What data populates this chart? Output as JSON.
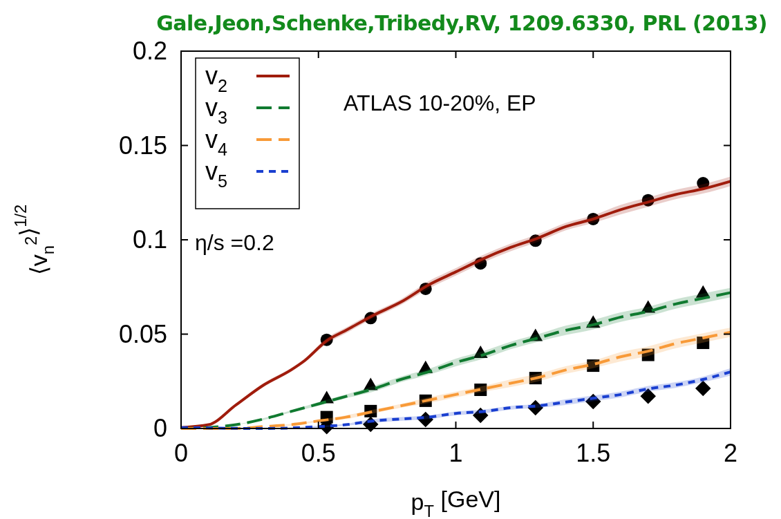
{
  "chart_data": {
    "type": "line",
    "title": "Gale,Jeon,Schenke,Tribedy,RV, 1209.6330, PRL (2013)",
    "xlabel": "p$_{T}$ [GeV]",
    "ylabel": "⟨v$_{n}$$^{2}$⟩$^{1/2}$",
    "annotations": [
      "ATLAS 10-20%, EP",
      "η/s =0.2"
    ],
    "xlim": [
      0,
      2
    ],
    "ylim": [
      0,
      0.2
    ],
    "xticks": [
      0,
      0.5,
      1,
      1.5,
      2
    ],
    "yticks": [
      0,
      0.05,
      0.1,
      0.15,
      0.2
    ],
    "grid": false,
    "legend": "top left",
    "series": [
      {
        "name": "v$_{2}$",
        "type": "line",
        "color": "#a01c0c",
        "line_style": "solid",
        "x": [
          0,
          0.1,
          0.2,
          0.3,
          0.4,
          0.45,
          0.53,
          0.6,
          0.7,
          0.8,
          0.9,
          1.0,
          1.1,
          1.2,
          1.3,
          1.4,
          1.5,
          1.6,
          1.7,
          1.8,
          1.9,
          2.0
        ],
        "values": [
          0.0005,
          0.002,
          0.0125,
          0.023,
          0.031,
          0.036,
          0.0465,
          0.052,
          0.06,
          0.067,
          0.076,
          0.083,
          0.09,
          0.096,
          0.101,
          0.107,
          0.111,
          0.116,
          0.12,
          0.124,
          0.127,
          0.131
        ],
        "lower": [
          0.0005,
          0.002,
          0.012,
          0.022,
          0.03,
          0.035,
          0.045,
          0.0505,
          0.0585,
          0.0655,
          0.074,
          0.081,
          0.088,
          0.094,
          0.099,
          0.105,
          0.109,
          0.1135,
          0.1175,
          0.1215,
          0.1245,
          0.1285
        ],
        "upper": [
          0.0005,
          0.002,
          0.013,
          0.024,
          0.032,
          0.037,
          0.048,
          0.0535,
          0.0615,
          0.0685,
          0.078,
          0.085,
          0.092,
          0.098,
          0.103,
          0.109,
          0.113,
          0.1185,
          0.1225,
          0.1265,
          0.1295,
          0.1335
        ]
      },
      {
        "name": "v$_{3}$",
        "type": "line",
        "color": "#107a30",
        "line_style": "dashed",
        "x": [
          0,
          0.1,
          0.2,
          0.3,
          0.4,
          0.5,
          0.6,
          0.7,
          0.8,
          0.9,
          1.0,
          1.1,
          1.2,
          1.3,
          1.4,
          1.5,
          1.6,
          1.7,
          1.8,
          1.9,
          2.0
        ],
        "values": [
          0,
          0.0005,
          0.002,
          0.005,
          0.009,
          0.013,
          0.017,
          0.021,
          0.026,
          0.03,
          0.035,
          0.039,
          0.044,
          0.048,
          0.052,
          0.055,
          0.059,
          0.062,
          0.066,
          0.069,
          0.072
        ],
        "lower": [
          0,
          0.0005,
          0.002,
          0.0045,
          0.0085,
          0.012,
          0.016,
          0.0195,
          0.0245,
          0.0285,
          0.033,
          0.037,
          0.042,
          0.046,
          0.0495,
          0.0525,
          0.0565,
          0.0595,
          0.0635,
          0.0665,
          0.0695
        ],
        "upper": [
          0,
          0.0005,
          0.002,
          0.0055,
          0.0095,
          0.014,
          0.018,
          0.0225,
          0.0275,
          0.0315,
          0.037,
          0.041,
          0.046,
          0.05,
          0.0545,
          0.0575,
          0.0615,
          0.0645,
          0.0685,
          0.0715,
          0.0745
        ]
      },
      {
        "name": "v$_{4}$",
        "type": "line",
        "color": "#f89a38",
        "line_style": "dashed",
        "x": [
          0,
          0.2,
          0.3,
          0.4,
          0.5,
          0.6,
          0.7,
          0.8,
          0.9,
          1.0,
          1.1,
          1.2,
          1.3,
          1.4,
          1.5,
          1.6,
          1.7,
          1.8,
          1.9,
          2.0
        ],
        "values": [
          0,
          0,
          0.001,
          0.002,
          0.004,
          0.006,
          0.009,
          0.012,
          0.015,
          0.018,
          0.021,
          0.024,
          0.027,
          0.031,
          0.034,
          0.038,
          0.041,
          0.045,
          0.048,
          0.051
        ],
        "lower": [
          0,
          0,
          0.001,
          0.0015,
          0.0035,
          0.005,
          0.008,
          0.011,
          0.0135,
          0.0165,
          0.0195,
          0.022,
          0.025,
          0.029,
          0.032,
          0.0355,
          0.0385,
          0.0425,
          0.0455,
          0.0485
        ],
        "upper": [
          0,
          0,
          0.001,
          0.0025,
          0.0045,
          0.007,
          0.01,
          0.013,
          0.0165,
          0.0195,
          0.0225,
          0.026,
          0.029,
          0.033,
          0.036,
          0.0405,
          0.0435,
          0.0475,
          0.0505,
          0.0535
        ]
      },
      {
        "name": "v$_{5}$",
        "type": "line",
        "color": "#1a3fd0",
        "line_style": "dotted",
        "x": [
          0,
          0.3,
          0.5,
          0.6,
          0.7,
          0.8,
          0.9,
          1.0,
          1.1,
          1.2,
          1.3,
          1.4,
          1.5,
          1.6,
          1.7,
          1.8,
          1.9,
          2.0
        ],
        "values": [
          0.0005,
          0,
          0.001,
          0.002,
          0.004,
          0.005,
          0.006,
          0.008,
          0.009,
          0.011,
          0.012,
          0.014,
          0.016,
          0.018,
          0.021,
          0.023,
          0.026,
          0.03
        ],
        "lower": [
          0.0005,
          0,
          0.0005,
          0.0015,
          0.003,
          0.004,
          0.005,
          0.007,
          0.008,
          0.01,
          0.011,
          0.0125,
          0.0145,
          0.0165,
          0.0195,
          0.0215,
          0.0245,
          0.028
        ],
        "upper": [
          0.0005,
          0,
          0.0015,
          0.0025,
          0.005,
          0.006,
          0.007,
          0.009,
          0.01,
          0.012,
          0.013,
          0.0155,
          0.0175,
          0.0195,
          0.0225,
          0.0245,
          0.0275,
          0.032
        ]
      },
      {
        "type": "scatter",
        "color": "#000000",
        "marker": "circle",
        "x": [
          0.53,
          0.69,
          0.89,
          1.09,
          1.29,
          1.5,
          1.7,
          1.9
        ],
        "values": [
          0.047,
          0.0585,
          0.074,
          0.0875,
          0.0995,
          0.111,
          0.121,
          0.13
        ]
      },
      {
        "type": "scatter",
        "color": "#000000",
        "marker": "triangle",
        "x": [
          0.53,
          0.69,
          0.89,
          1.09,
          1.29,
          1.5,
          1.7,
          1.9
        ],
        "values": [
          0.016,
          0.023,
          0.032,
          0.04,
          0.049,
          0.056,
          0.064,
          0.072
        ]
      },
      {
        "type": "scatter",
        "color": "#000000",
        "marker": "square",
        "x": [
          0.53,
          0.69,
          0.89,
          1.09,
          1.29,
          1.5,
          1.7,
          1.9
        ],
        "values": [
          0.006,
          0.0092,
          0.0147,
          0.0205,
          0.0267,
          0.0333,
          0.039,
          0.0454
        ]
      },
      {
        "type": "scatter",
        "color": "#000000",
        "marker": "diamond",
        "x": [
          0.53,
          0.69,
          0.89,
          1.09,
          1.29,
          1.5,
          1.7,
          1.9
        ],
        "values": [
          0.001,
          0.0022,
          0.0048,
          0.007,
          0.011,
          0.0143,
          0.0171,
          0.0212
        ]
      }
    ]
  }
}
